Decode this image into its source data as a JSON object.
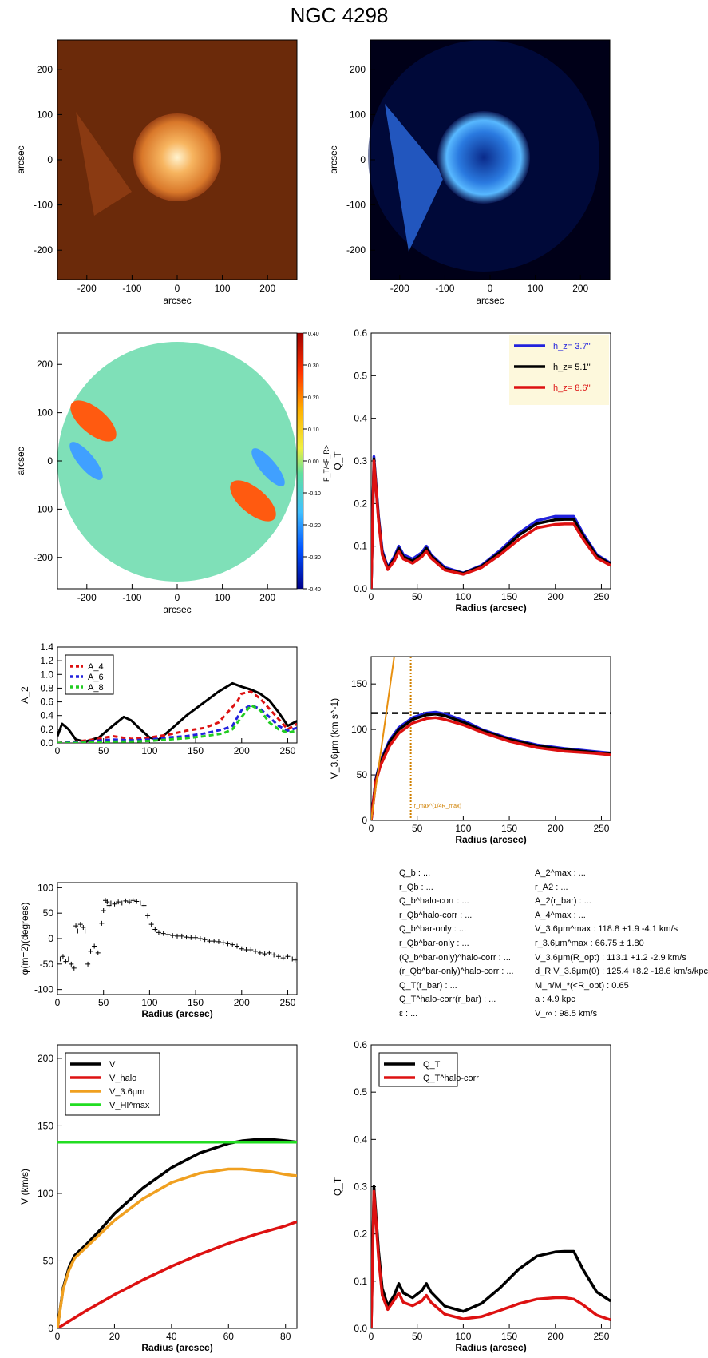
{
  "title": "NGC 4298",
  "images": {
    "xticks": [
      "-200",
      "-100",
      "0",
      "100",
      "200"
    ],
    "yticks": [
      "200",
      "100",
      "0",
      "-100",
      "-200"
    ],
    "xlabel": "arcsec",
    "ylabel": "arcsec",
    "colors": {
      "galaxy_orange": "#f0a040",
      "background_brown": "#6b2a0a",
      "background_navy": "#000018",
      "blue_emission": "#3aa0ff"
    },
    "colorbar": {
      "ticks": [
        "0.40",
        "0.30",
        "0.20",
        "0.10",
        "0.00",
        "-0.10",
        "-0.20",
        "-0.30",
        "-0.40"
      ],
      "label": "F_T/<F_R>"
    }
  },
  "chart_data": [
    {
      "id": "qt_hz",
      "type": "line",
      "xlabel": "Radius (arcsec)",
      "ylabel": "Q_T",
      "xlim": [
        0,
        260
      ],
      "ylim": [
        0,
        0.6
      ],
      "xticks": [
        "0",
        "50",
        "100",
        "150",
        "200",
        "250"
      ],
      "yticks": [
        "0.0",
        "0.1",
        "0.2",
        "0.3",
        "0.4",
        "0.5",
        "0.6"
      ],
      "legend": {
        "placement": "top-right",
        "labels": [
          "h_z= 3.7''",
          "h_z= 5.1''",
          "h_z= 8.6''"
        ]
      },
      "series": [
        {
          "name": "h_z= 3.7''",
          "color": "#2222dd",
          "x": [
            0,
            3,
            8,
            12,
            18,
            25,
            30,
            35,
            45,
            55,
            60,
            65,
            80,
            100,
            120,
            140,
            160,
            180,
            200,
            210,
            220,
            230,
            245,
            260
          ],
          "y": [
            0.0,
            0.31,
            0.17,
            0.09,
            0.05,
            0.075,
            0.1,
            0.08,
            0.07,
            0.085,
            0.1,
            0.08,
            0.05,
            0.037,
            0.055,
            0.09,
            0.13,
            0.16,
            0.17,
            0.17,
            0.17,
            0.13,
            0.08,
            0.06
          ]
        },
        {
          "name": "h_z= 5.1''",
          "color": "#000000",
          "x": [
            0,
            3,
            8,
            12,
            18,
            25,
            30,
            35,
            45,
            55,
            60,
            65,
            80,
            100,
            120,
            140,
            160,
            180,
            200,
            210,
            220,
            230,
            245,
            260
          ],
          "y": [
            0.0,
            0.305,
            0.165,
            0.085,
            0.048,
            0.07,
            0.095,
            0.075,
            0.065,
            0.08,
            0.095,
            0.077,
            0.047,
            0.036,
            0.053,
            0.086,
            0.125,
            0.153,
            0.162,
            0.163,
            0.163,
            0.125,
            0.077,
            0.058
          ]
        },
        {
          "name": "h_z= 8.6''",
          "color": "#dd1111",
          "x": [
            0,
            3,
            8,
            12,
            18,
            25,
            30,
            35,
            45,
            55,
            60,
            65,
            80,
            100,
            120,
            140,
            160,
            180,
            200,
            210,
            220,
            230,
            245,
            260
          ],
          "y": [
            0.0,
            0.3,
            0.16,
            0.08,
            0.045,
            0.065,
            0.088,
            0.07,
            0.06,
            0.075,
            0.088,
            0.072,
            0.044,
            0.034,
            0.05,
            0.08,
            0.115,
            0.143,
            0.151,
            0.152,
            0.152,
            0.117,
            0.072,
            0.055
          ]
        }
      ]
    },
    {
      "id": "a2",
      "type": "line",
      "xlabel": "",
      "ylabel": "A_2",
      "xlim": [
        0,
        260
      ],
      "ylim": [
        0,
        1.4
      ],
      "xticks": [
        "0",
        "50",
        "100",
        "150",
        "200",
        "250"
      ],
      "yticks": [
        "0.0",
        "0.2",
        "0.4",
        "0.6",
        "0.8",
        "1.0",
        "1.2",
        "1.4"
      ],
      "legend": {
        "placement": "top-left",
        "labels": [
          "A_4",
          "A_6",
          "A_8"
        ]
      },
      "series": [
        {
          "name": "A_2",
          "color": "#000000",
          "dash": "",
          "x": [
            0,
            5,
            12,
            20,
            30,
            45,
            60,
            72,
            80,
            90,
            100,
            110,
            125,
            140,
            160,
            175,
            190,
            200,
            210,
            220,
            230,
            240,
            250,
            260
          ],
          "y": [
            0.1,
            0.28,
            0.2,
            0.05,
            0.02,
            0.08,
            0.25,
            0.38,
            0.33,
            0.2,
            0.08,
            0.05,
            0.22,
            0.4,
            0.6,
            0.75,
            0.87,
            0.82,
            0.78,
            0.72,
            0.62,
            0.45,
            0.25,
            0.32
          ]
        },
        {
          "name": "A_4",
          "color": "#dd1111",
          "dash": "6,4",
          "x": [
            0,
            20,
            40,
            60,
            80,
            100,
            120,
            140,
            160,
            175,
            185,
            195,
            200,
            210,
            220,
            230,
            240,
            250,
            260
          ],
          "y": [
            0.0,
            0.02,
            0.05,
            0.1,
            0.06,
            0.08,
            0.12,
            0.18,
            0.22,
            0.3,
            0.45,
            0.6,
            0.72,
            0.75,
            0.65,
            0.5,
            0.35,
            0.2,
            0.28
          ]
        },
        {
          "name": "A_6",
          "color": "#2222dd",
          "dash": "6,4",
          "x": [
            0,
            20,
            40,
            60,
            80,
            100,
            120,
            140,
            160,
            180,
            190,
            200,
            210,
            220,
            230,
            240,
            250,
            260
          ],
          "y": [
            0.0,
            0.01,
            0.03,
            0.05,
            0.04,
            0.05,
            0.08,
            0.1,
            0.14,
            0.2,
            0.25,
            0.48,
            0.55,
            0.5,
            0.38,
            0.25,
            0.18,
            0.22
          ]
        },
        {
          "name": "A_8",
          "color": "#22cc22",
          "dash": "6,4",
          "x": [
            0,
            20,
            40,
            60,
            80,
            100,
            120,
            140,
            160,
            180,
            190,
            200,
            210,
            220,
            230,
            240,
            250,
            260
          ],
          "y": [
            0.0,
            0.0,
            0.01,
            0.02,
            0.02,
            0.03,
            0.05,
            0.07,
            0.1,
            0.14,
            0.2,
            0.38,
            0.55,
            0.48,
            0.3,
            0.2,
            0.15,
            0.18
          ]
        }
      ]
    },
    {
      "id": "v36",
      "type": "line",
      "xlabel": "Radius (arcsec)",
      "ylabel": "V_3.6μm (km s^-1)",
      "xlim": [
        0,
        260
      ],
      "ylim": [
        0,
        180
      ],
      "xticks": [
        "0",
        "50",
        "100",
        "150",
        "200",
        "250"
      ],
      "yticks": [
        "0",
        "50",
        "100",
        "150"
      ],
      "annotation": "r_max^(1/4R_max)",
      "hline": 118,
      "vline": 43,
      "series": [
        {
          "name": "h_z= 3.7''",
          "color": "#2222dd",
          "x": [
            0,
            5,
            10,
            20,
            30,
            45,
            60,
            70,
            80,
            100,
            120,
            150,
            180,
            210,
            240,
            260
          ],
          "y": [
            0,
            45,
            65,
            88,
            102,
            113,
            118,
            119,
            117,
            110,
            100,
            90,
            83,
            79,
            76,
            74
          ]
        },
        {
          "name": "h_z= 5.1''",
          "color": "#000000",
          "x": [
            0,
            5,
            10,
            20,
            30,
            45,
            60,
            70,
            80,
            100,
            120,
            150,
            180,
            210,
            240,
            260
          ],
          "y": [
            0,
            44,
            63,
            86,
            100,
            111,
            116,
            117,
            115,
            108,
            99,
            89,
            82,
            78,
            75,
            73
          ]
        },
        {
          "name": "h_z= 8.6''",
          "color": "#dd1111",
          "x": [
            0,
            5,
            10,
            20,
            30,
            45,
            60,
            70,
            80,
            100,
            120,
            150,
            180,
            210,
            240,
            260
          ],
          "y": [
            0,
            42,
            60,
            82,
            96,
            107,
            112,
            113,
            111,
            105,
            97,
            87,
            80,
            76,
            74,
            72
          ]
        },
        {
          "name": "slope",
          "color": "#e89010",
          "x": [
            0,
            25
          ],
          "y": [
            0,
            180
          ]
        }
      ]
    },
    {
      "id": "phase",
      "type": "scatter",
      "xlabel": "Radius (arcsec)",
      "ylabel": "φ(m=2)(degrees)",
      "xlim": [
        0,
        260
      ],
      "ylim": [
        -110,
        110
      ],
      "xticks": [
        "0",
        "50",
        "100",
        "150",
        "200",
        "250"
      ],
      "yticks": [
        "100",
        "50",
        "0",
        "-50",
        "-100"
      ],
      "series": [
        {
          "name": "phase",
          "color": "#000000",
          "x": [
            3,
            6,
            9,
            12,
            15,
            18,
            20,
            22,
            25,
            28,
            30,
            33,
            36,
            40,
            44,
            48,
            50,
            52,
            54,
            56,
            58,
            62,
            66,
            70,
            74,
            78,
            82,
            86,
            90,
            94,
            98,
            102,
            106,
            110,
            115,
            120,
            125,
            130,
            135,
            140,
            145,
            150,
            155,
            160,
            165,
            170,
            175,
            180,
            185,
            190,
            195,
            200,
            205,
            210,
            215,
            220,
            225,
            230,
            235,
            240,
            245,
            250,
            255,
            258
          ],
          "y": [
            -40,
            -35,
            -45,
            -40,
            -50,
            -58,
            25,
            15,
            28,
            22,
            15,
            -50,
            -25,
            -15,
            -28,
            30,
            55,
            75,
            72,
            65,
            70,
            68,
            72,
            70,
            74,
            72,
            75,
            73,
            70,
            65,
            45,
            28,
            18,
            12,
            10,
            8,
            6,
            5,
            5,
            3,
            2,
            2,
            0,
            -2,
            -5,
            -5,
            -6,
            -8,
            -10,
            -12,
            -15,
            -20,
            -22,
            -22,
            -25,
            -28,
            -30,
            -28,
            -32,
            -35,
            -38,
            -35,
            -40,
            -42
          ]
        }
      ]
    },
    {
      "id": "v_model",
      "type": "line",
      "xlabel": "Radius (arcsec)",
      "ylabel": "V (km/s)",
      "xlim": [
        0,
        84
      ],
      "ylim": [
        0,
        210
      ],
      "xticks": [
        "0",
        "20",
        "40",
        "60",
        "80"
      ],
      "yticks": [
        "0",
        "50",
        "100",
        "150",
        "200"
      ],
      "legend": {
        "placement": "top-left",
        "labels": [
          "V",
          "V_halo",
          "V_3.6μm",
          "V_HI^max"
        ]
      },
      "series": [
        {
          "name": "V",
          "color": "#000000",
          "x": [
            0,
            2,
            4,
            6,
            8,
            10,
            15,
            20,
            30,
            40,
            50,
            60,
            65,
            70,
            75,
            80,
            84
          ],
          "y": [
            0,
            30,
            45,
            54,
            58,
            62,
            73,
            85,
            104,
            119,
            130,
            137,
            139,
            140,
            140,
            139,
            138
          ]
        },
        {
          "name": "V_halo",
          "color": "#dd1111",
          "x": [
            0,
            10,
            20,
            30,
            40,
            50,
            60,
            70,
            80,
            84
          ],
          "y": [
            0,
            13,
            25,
            36,
            46,
            55,
            63,
            70,
            76,
            79
          ]
        },
        {
          "name": "V_3.6μm",
          "color": "#f0a020",
          "x": [
            0,
            2,
            4,
            6,
            8,
            10,
            15,
            20,
            30,
            40,
            50,
            60,
            65,
            70,
            75,
            80,
            84
          ],
          "y": [
            0,
            29,
            43,
            52,
            56,
            60,
            70,
            80,
            96,
            108,
            115,
            118,
            118,
            117,
            116,
            114,
            113
          ]
        },
        {
          "name": "V_HI^max",
          "color": "#22dd22",
          "x": [
            0,
            84
          ],
          "y": [
            138,
            138
          ]
        }
      ]
    },
    {
      "id": "qt_halo",
      "type": "line",
      "xlabel": "Radius (arcsec)",
      "ylabel": "Q_T",
      "xlim": [
        0,
        260
      ],
      "ylim": [
        0,
        0.6
      ],
      "xticks": [
        "0",
        "50",
        "100",
        "150",
        "200",
        "250"
      ],
      "yticks": [
        "0.0",
        "0.1",
        "0.2",
        "0.3",
        "0.4",
        "0.5",
        "0.6"
      ],
      "legend": {
        "placement": "top-left",
        "labels": [
          "Q_T",
          "Q_T^halo-corr"
        ]
      },
      "series": [
        {
          "name": "Q_T",
          "color": "#000000",
          "x": [
            0,
            3,
            8,
            12,
            18,
            25,
            30,
            35,
            45,
            55,
            60,
            65,
            80,
            100,
            120,
            140,
            160,
            180,
            200,
            210,
            220,
            230,
            245,
            260
          ],
          "y": [
            0.0,
            0.3,
            0.165,
            0.085,
            0.048,
            0.07,
            0.095,
            0.075,
            0.065,
            0.08,
            0.095,
            0.077,
            0.047,
            0.036,
            0.053,
            0.086,
            0.125,
            0.153,
            0.162,
            0.163,
            0.163,
            0.125,
            0.077,
            0.058
          ]
        },
        {
          "name": "Q_T^halo-corr",
          "color": "#dd1111",
          "x": [
            0,
            3,
            8,
            12,
            18,
            25,
            30,
            35,
            45,
            55,
            60,
            65,
            80,
            100,
            120,
            140,
            160,
            180,
            200,
            210,
            220,
            230,
            245,
            260
          ],
          "y": [
            0.0,
            0.29,
            0.15,
            0.07,
            0.04,
            0.06,
            0.075,
            0.055,
            0.048,
            0.058,
            0.07,
            0.055,
            0.03,
            0.02,
            0.025,
            0.038,
            0.052,
            0.062,
            0.065,
            0.065,
            0.062,
            0.05,
            0.028,
            0.018
          ]
        }
      ]
    }
  ],
  "params_left": [
    "Q_b : ...",
    "r_Qb : ...",
    "Q_b^halo-corr : ...",
    "r_Qb^halo-corr : ...",
    "Q_b^bar-only : ...",
    "r_Qb^bar-only : ...",
    "(Q_b^bar-only)^halo-corr : ...",
    "(r_Qb^bar-only)^halo-corr : ...",
    "Q_T(r_bar) : ...",
    "Q_T^halo-corr(r_bar) : ...",
    "ε : ..."
  ],
  "params_right": [
    "A_2^max : ...",
    "r_A2 : ...",
    "A_2(r_bar) : ...",
    "A_4^max : ...",
    "V_3.6μm^max : 118.8 +1.9 -4.1 km/s",
    "r_3.6μm^max : 66.75 ± 1.80",
    "V_3.6μm(R_opt) : 113.1 +1.2 -2.9 km/s",
    "d_R V_3.6μm(0) : 125.4 +8.2 -18.6 km/s/kpc",
    "M_h/M_*(<R_opt) : 0.65",
    "a : 4.9 kpc",
    "V_∞ : 98.5 km/s"
  ]
}
